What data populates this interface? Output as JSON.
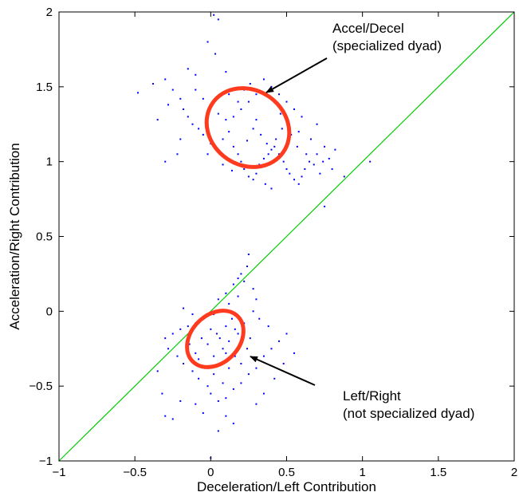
{
  "chart_data": {
    "type": "scatter",
    "xlabel": "Deceleration/Left Contribution",
    "ylabel": "Acceleration/Right Contribution",
    "xlim": [
      -1,
      2
    ],
    "ylim": [
      -1,
      2
    ],
    "xticks": [
      -1,
      -0.5,
      0,
      0.5,
      1,
      1.5,
      2
    ],
    "yticks": [
      -1,
      -0.5,
      0,
      0.5,
      1,
      1.5,
      2
    ],
    "xtick_labels": [
      "−1",
      "−0.5",
      "0",
      "0.5",
      "1",
      "1.5",
      "2"
    ],
    "ytick_labels": [
      "−1",
      "−0.5",
      "0",
      "0.5",
      "1",
      "1.5",
      "2"
    ],
    "grid": false,
    "colors": {
      "points": "#0000ff",
      "diagonal": "#00cc00",
      "ellipse": "#ff3b1f",
      "arrow": "#000000"
    },
    "diagonal_line": {
      "from": [
        -1,
        -1
      ],
      "to": [
        2,
        2
      ]
    },
    "series": [
      {
        "cluster": "accel_decel",
        "points": [
          [
            0.02,
            1.98
          ],
          [
            0.05,
            1.95
          ],
          [
            -0.02,
            1.8
          ],
          [
            0.03,
            1.72
          ],
          [
            0.1,
            1.6
          ],
          [
            -0.1,
            1.58
          ],
          [
            -0.48,
            1.46
          ],
          [
            -0.38,
            1.52
          ],
          [
            -0.3,
            1.55
          ],
          [
            -0.25,
            1.48
          ],
          [
            -0.2,
            1.42
          ],
          [
            -0.28,
            1.38
          ],
          [
            -0.18,
            1.35
          ],
          [
            -0.15,
            1.3
          ],
          [
            -0.12,
            1.25
          ],
          [
            -0.08,
            1.22
          ],
          [
            -0.2,
            1.15
          ],
          [
            -0.05,
            1.18
          ],
          [
            0.0,
            1.12
          ],
          [
            0.05,
            1.08
          ],
          [
            0.08,
            1.15
          ],
          [
            0.12,
            1.2
          ],
          [
            0.15,
            1.1
          ],
          [
            0.18,
            1.05
          ],
          [
            0.2,
            1.0
          ],
          [
            0.22,
            0.95
          ],
          [
            0.25,
            0.9
          ],
          [
            0.28,
            0.88
          ],
          [
            0.3,
            0.92
          ],
          [
            0.32,
            0.98
          ],
          [
            0.35,
            1.02
          ],
          [
            0.38,
            1.05
          ],
          [
            0.4,
            1.08
          ],
          [
            0.42,
            1.1
          ],
          [
            0.45,
            1.05
          ],
          [
            0.48,
            1.0
          ],
          [
            0.5,
            0.95
          ],
          [
            0.52,
            0.92
          ],
          [
            0.55,
            0.88
          ],
          [
            0.58,
            0.85
          ],
          [
            0.6,
            0.9
          ],
          [
            0.62,
            0.95
          ],
          [
            0.65,
            1.0
          ],
          [
            0.7,
            1.05
          ],
          [
            0.75,
            1.1
          ],
          [
            0.78,
            1.02
          ],
          [
            0.8,
            0.95
          ],
          [
            0.88,
            0.9
          ],
          [
            1.05,
            1.0
          ],
          [
            0.75,
            0.7
          ],
          [
            0.7,
            1.25
          ],
          [
            0.6,
            1.3
          ],
          [
            0.55,
            1.35
          ],
          [
            0.5,
            1.4
          ],
          [
            0.45,
            1.45
          ],
          [
            0.4,
            1.5
          ],
          [
            0.35,
            1.55
          ],
          [
            0.3,
            1.45
          ],
          [
            0.25,
            1.4
          ],
          [
            0.2,
            1.35
          ],
          [
            0.15,
            1.3
          ],
          [
            0.1,
            1.28
          ],
          [
            0.05,
            1.32
          ],
          [
            0.0,
            1.38
          ],
          [
            -0.05,
            1.42
          ],
          [
            -0.1,
            1.48
          ],
          [
            -0.3,
            1.0
          ],
          [
            -0.22,
            1.05
          ],
          [
            0.28,
            1.22
          ],
          [
            0.33,
            1.18
          ],
          [
            0.37,
            1.12
          ],
          [
            0.43,
            1.15
          ],
          [
            0.47,
            1.22
          ],
          [
            0.53,
            1.18
          ],
          [
            0.57,
            1.1
          ],
          [
            0.63,
            1.05
          ],
          [
            0.68,
            0.98
          ],
          [
            0.72,
            0.92
          ],
          [
            0.4,
            0.82
          ],
          [
            0.36,
            0.85
          ],
          [
            0.18,
            1.4
          ],
          [
            0.22,
            1.48
          ],
          [
            0.26,
            1.52
          ],
          [
            0.12,
            1.45
          ],
          [
            -0.15,
            1.62
          ],
          [
            -0.35,
            1.28
          ],
          [
            -0.02,
            1.05
          ],
          [
            0.08,
            0.98
          ],
          [
            0.14,
            0.94
          ],
          [
            0.24,
            1.14
          ],
          [
            0.3,
            1.28
          ],
          [
            0.46,
            1.32
          ],
          [
            0.58,
            1.2
          ],
          [
            0.66,
            1.15
          ],
          [
            0.74,
            1.0
          ],
          [
            0.82,
            1.08
          ]
        ]
      },
      {
        "cluster": "left_right",
        "points": [
          [
            0.25,
            0.38
          ],
          [
            0.2,
            0.25
          ],
          [
            0.15,
            0.18
          ],
          [
            0.1,
            0.12
          ],
          [
            0.05,
            0.08
          ],
          [
            0.22,
            0.2
          ],
          [
            0.18,
            0.1
          ],
          [
            0.12,
            0.05
          ],
          [
            0.08,
            0.0
          ],
          [
            0.02,
            -0.02
          ],
          [
            -0.05,
            -0.05
          ],
          [
            -0.1,
            -0.08
          ],
          [
            -0.15,
            -0.1
          ],
          [
            -0.2,
            -0.12
          ],
          [
            -0.25,
            -0.15
          ],
          [
            -0.3,
            -0.18
          ],
          [
            -0.28,
            -0.25
          ],
          [
            -0.22,
            -0.3
          ],
          [
            -0.18,
            -0.35
          ],
          [
            -0.12,
            -0.4
          ],
          [
            -0.08,
            -0.45
          ],
          [
            -0.02,
            -0.5
          ],
          [
            0.0,
            -0.55
          ],
          [
            0.05,
            -0.6
          ],
          [
            0.1,
            -0.58
          ],
          [
            0.15,
            -0.52
          ],
          [
            0.2,
            -0.48
          ],
          [
            0.25,
            -0.42
          ],
          [
            0.3,
            -0.38
          ],
          [
            0.35,
            -0.3
          ],
          [
            0.4,
            -0.25
          ],
          [
            0.45,
            -0.2
          ],
          [
            0.5,
            -0.15
          ],
          [
            0.38,
            -0.1
          ],
          [
            0.32,
            -0.05
          ],
          [
            0.28,
            0.0
          ],
          [
            0.22,
            -0.08
          ],
          [
            0.18,
            -0.15
          ],
          [
            0.12,
            -0.2
          ],
          [
            0.08,
            -0.25
          ],
          [
            0.02,
            -0.3
          ],
          [
            -0.02,
            -0.22
          ],
          [
            -0.06,
            -0.18
          ],
          [
            0.0,
            -0.12
          ],
          [
            0.04,
            -0.15
          ],
          [
            0.1,
            -0.1
          ],
          [
            0.14,
            -0.05
          ],
          [
            0.06,
            -0.35
          ],
          [
            -0.1,
            -0.28
          ],
          [
            -0.14,
            -0.22
          ],
          [
            0.16,
            -0.3
          ],
          [
            0.2,
            -0.35
          ],
          [
            0.24,
            -0.25
          ],
          [
            0.26,
            -0.18
          ],
          [
            -0.2,
            -0.6
          ],
          [
            -0.25,
            -0.72
          ],
          [
            -0.3,
            -0.7
          ],
          [
            -0.1,
            -0.62
          ],
          [
            -0.05,
            -0.68
          ],
          [
            0.0,
            -0.98
          ],
          [
            0.05,
            -0.8
          ],
          [
            0.1,
            -0.7
          ],
          [
            0.15,
            -0.75
          ],
          [
            -0.35,
            -0.4
          ],
          [
            -0.32,
            -0.55
          ],
          [
            0.3,
            -0.62
          ],
          [
            0.35,
            -0.55
          ],
          [
            0.42,
            -0.45
          ],
          [
            0.48,
            -0.35
          ],
          [
            0.55,
            -0.28
          ],
          [
            -0.12,
            -0.02
          ],
          [
            -0.18,
            0.02
          ],
          [
            0.3,
            0.08
          ],
          [
            0.28,
            0.15
          ],
          [
            0.24,
            0.3
          ],
          [
            0.18,
            0.22
          ],
          [
            -0.04,
            -0.38
          ],
          [
            0.02,
            -0.42
          ],
          [
            0.08,
            -0.48
          ],
          [
            0.12,
            -0.38
          ],
          [
            -0.08,
            -0.32
          ],
          [
            0.06,
            -0.18
          ],
          [
            0.1,
            -0.28
          ],
          [
            0.16,
            -0.12
          ]
        ]
      }
    ],
    "annotations": [
      {
        "lines": [
          "Accel/Decel",
          "(specialized dyad)"
        ]
      },
      {
        "lines": [
          "Left/Right",
          "(not specialized dyad)"
        ]
      }
    ]
  }
}
